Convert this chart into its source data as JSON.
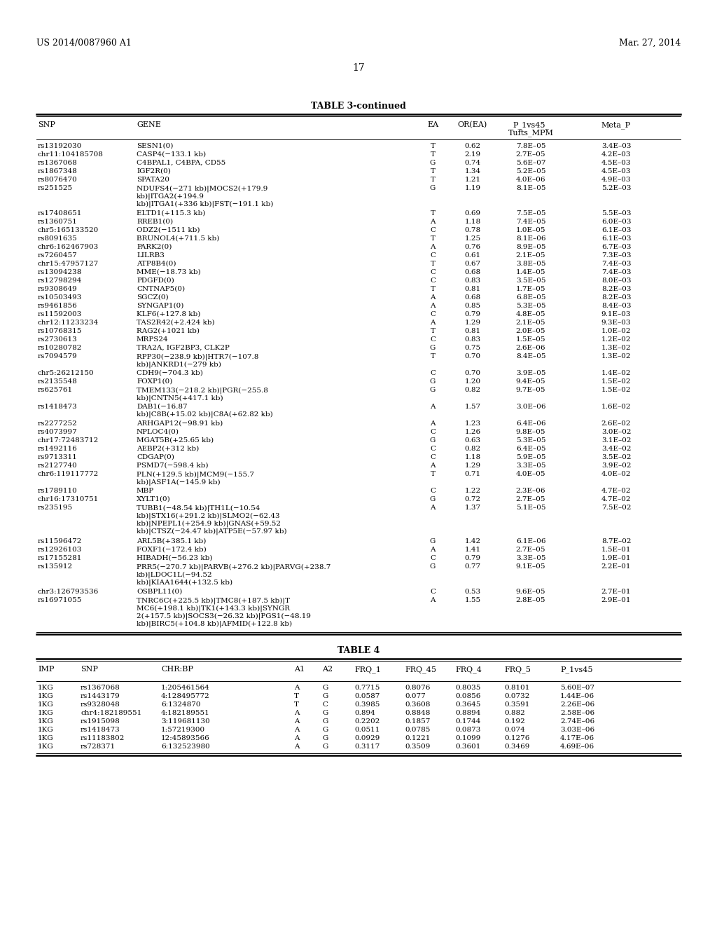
{
  "header_left": "US 2014/0087960 A1",
  "header_right": "Mar. 27, 2014",
  "page_number": "17",
  "table3_title": "TABLE 3-continued",
  "table3_rows": [
    [
      "rs13192030",
      "SESN1(0)",
      "T",
      "0.62",
      "7.8E–05",
      "3.4E–03"
    ],
    [
      "chr11:104185708",
      "CASP4(−133.1 kb)",
      "T",
      "2.19",
      "2.7E–05",
      "4.2E–03"
    ],
    [
      "rs1367068",
      "C4BPAL1, C4BPA, CD55",
      "G",
      "0.74",
      "5.6E–07",
      "4.5E–03"
    ],
    [
      "rs1867348",
      "IGF2R(0)",
      "T",
      "1.34",
      "5.2E–05",
      "4.5E–03"
    ],
    [
      "rs8076470",
      "SPATA20",
      "T",
      "1.21",
      "4.0E–06",
      "4.9E–03"
    ],
    [
      "rs251525",
      "NDUFS4(−271 kb)|MOCS2(+179.9\nkb)|ITGA2(+194.9\nkb)|ITGA1(+336 kb)|FST(−191.1 kb)",
      "G",
      "1.19",
      "8.1E–05",
      "5.2E–03"
    ],
    [
      "rs17408651",
      "ELTD1(+115.3 kb)",
      "T",
      "0.69",
      "7.5E–05",
      "5.5E–03"
    ],
    [
      "rs1360751",
      "RREB1(0)",
      "A",
      "1.18",
      "7.4E–05",
      "6.0E–03"
    ],
    [
      "chr5:165133520",
      "ODZ2(−1511 kb)",
      "C",
      "0.78",
      "1.0E–05",
      "6.1E–03"
    ],
    [
      "rs8091635",
      "BRUNOL4(+711.5 kb)",
      "T",
      "1.25",
      "8.1E–06",
      "6.1E–03"
    ],
    [
      "chr6:162467903",
      "PARK2(0)",
      "A",
      "0.76",
      "8.9E–05",
      "6.7E–03"
    ],
    [
      "rs7260457",
      "LILRB3",
      "C",
      "0.61",
      "2.1E–05",
      "7.3E–03"
    ],
    [
      "chr15:47957127",
      "ATP8B4(0)",
      "T",
      "0.67",
      "3.8E–05",
      "7.4E–03"
    ],
    [
      "rs13094238",
      "MME(−18.73 kb)",
      "C",
      "0.68",
      "1.4E–05",
      "7.4E–03"
    ],
    [
      "rs12798294",
      "PDGFD(0)",
      "C",
      "0.83",
      "3.5E–05",
      "8.0E–03"
    ],
    [
      "rs9308649",
      "CNTNAP5(0)",
      "T",
      "0.81",
      "1.7E–05",
      "8.2E–03"
    ],
    [
      "rs10503493",
      "SGCZ(0)",
      "A",
      "0.68",
      "6.8E–05",
      "8.2E–03"
    ],
    [
      "rs9461856",
      "SYNGAP1(0)",
      "A",
      "0.85",
      "5.3E–05",
      "8.4E–03"
    ],
    [
      "rs11592003",
      "KLF6(+127.8 kb)",
      "C",
      "0.79",
      "4.8E–05",
      "9.1E–03"
    ],
    [
      "chr12:11233234",
      "TAS2R42(+2.424 kb)",
      "A",
      "1.29",
      "2.1E–05",
      "9.3E–03"
    ],
    [
      "rs10768315",
      "RAG2(+1021 kb)",
      "T",
      "0.81",
      "2.0E–05",
      "1.0E–02"
    ],
    [
      "rs2730613",
      "MRPS24",
      "C",
      "0.83",
      "1.5E–05",
      "1.2E–02"
    ],
    [
      "rs10280782",
      "TRA2A, IGF2BP3, CLK2P",
      "G",
      "0.75",
      "2.6E–06",
      "1.3E–02"
    ],
    [
      "rs7094579",
      "RPP30(−238.9 kb)|HTR7(−107.8\nkb)|ANKRD1(−279 kb)",
      "T",
      "0.70",
      "8.4E–05",
      "1.3E–02"
    ],
    [
      "chr5:26212150",
      "CDH9(−704.3 kb)",
      "C",
      "0.70",
      "3.9E–05",
      "1.4E–02"
    ],
    [
      "rs2135548",
      "FOXP1(0)",
      "G",
      "1.20",
      "9.4E–05",
      "1.5E–02"
    ],
    [
      "rs625761",
      "TMEM133(−218.2 kb)|PGR(−255.8\nkb)|CNTN5(+417.1 kb)",
      "G",
      "0.82",
      "9.7E–05",
      "1.5E–02"
    ],
    [
      "rs1418473",
      "DAB1(−16.87\nkb)|C8B(+15.02 kb)|C8A(+62.82 kb)",
      "A",
      "1.57",
      "3.0E–06",
      "1.6E–02"
    ],
    [
      "rs2277252",
      "ARHGAP12(−98.91 kb)",
      "A",
      "1.23",
      "6.4E–06",
      "2.6E–02"
    ],
    [
      "rs4073997",
      "NPLOC4(0)",
      "C",
      "1.26",
      "9.8E–05",
      "3.0E–02"
    ],
    [
      "chr17:72483712",
      "MGAT5B(+25.65 kb)",
      "G",
      "0.63",
      "5.3E–05",
      "3.1E–02"
    ],
    [
      "rs1492116",
      "AEBP2(+312 kb)",
      "C",
      "0.82",
      "6.4E–05",
      "3.4E–02"
    ],
    [
      "rs9713311",
      "CDGAP(0)",
      "C",
      "1.18",
      "5.9E–05",
      "3.5E–02"
    ],
    [
      "rs2127740",
      "PSMD7(−598.4 kb)",
      "A",
      "1.29",
      "3.3E–05",
      "3.9E–02"
    ],
    [
      "chr6:119117772",
      "PLN(+129.5 kb)|MCM9(−155.7\nkb)|ASF1A(−145.9 kb)",
      "T",
      "0.71",
      "4.0E–05",
      "4.0E–02"
    ],
    [
      "rs1789110",
      "MBP",
      "C",
      "1.22",
      "2.3E–06",
      "4.7E–02"
    ],
    [
      "chr16:17310751",
      "XYLT1(0)",
      "G",
      "0.72",
      "2.7E–05",
      "4.7E–02"
    ],
    [
      "rs235195",
      "TUBB1(−48.54 kb)|TH1L(−10.54\nkb)|STX16(+291.2 kb)|SLMO2(−62.43\nkb)|NPEPL1(+254.9 kb)|GNAS(+59.52\nkb)|CTSZ(−24.47 kb)|ATP5E(−57.97 kb)",
      "A",
      "1.37",
      "5.1E–05",
      "7.5E–02"
    ],
    [
      "rs11596472",
      "ARL5B(+385.1 kb)",
      "G",
      "1.42",
      "6.1E–06",
      "8.7E–02"
    ],
    [
      "rs12926103",
      "FOXF1(−172.4 kb)",
      "A",
      "1.41",
      "2.7E–05",
      "1.5E–01"
    ],
    [
      "rs17155281",
      "HIBADH(−56.23 kb)",
      "C",
      "0.79",
      "3.3E–05",
      "1.9E–01"
    ],
    [
      "rs135912",
      "PRR5(−270.7 kb)|PARVB(+276.2 kb)|PARVG(+238.7\nkb)|LDOC1L(−94.52\nkb)|KIAA1644(+132.5 kb)",
      "G",
      "0.77",
      "9.1E–05",
      "2.2E–01"
    ],
    [
      "chr3:126793536",
      "OSBPL11(0)",
      "C",
      "0.53",
      "9.6E–05",
      "2.7E–01"
    ],
    [
      "rs16971055",
      "TNRC6C(+225.5 kb)|TMC8(+187.5 kb)|T\nMC6(+198.1 kb)|TK1(+143.3 kb)|SYNGR\n2(+157.5 kb)|SOCS3(−26.32 kb)|PGS1(−48.19\nkb)|BIRC5(+104.8 kb)|AFMID(+122.8 kb)",
      "A",
      "1.55",
      "2.8E–05",
      "2.9E–01"
    ]
  ],
  "table4_title": "TABLE 4",
  "table4_headers": [
    "IMP",
    "SNP",
    "CHR:BP",
    "A1",
    "A2",
    "FRQ_1",
    "FRQ_45",
    "FRQ_4",
    "FRQ_5",
    "P_1vs45"
  ],
  "table4_rows": [
    [
      "1KG",
      "rs1367068",
      "1:205461564",
      "A",
      "G",
      "0.7715",
      "0.8076",
      "0.8035",
      "0.8101",
      "5.60E–07"
    ],
    [
      "1KG",
      "rs1443179",
      "4:128495772",
      "T",
      "G",
      "0.0587",
      "0.077",
      "0.0856",
      "0.0732",
      "1.44E–06"
    ],
    [
      "1KG",
      "rs9328048",
      "6:1324870",
      "T",
      "C",
      "0.3985",
      "0.3608",
      "0.3645",
      "0.3591",
      "2.26E–06"
    ],
    [
      "1KG",
      "chr4:182189551",
      "4:182189551",
      "A",
      "G",
      "0.894",
      "0.8848",
      "0.8894",
      "0.882",
      "2.58E–06"
    ],
    [
      "1KG",
      "rs1915098",
      "3:119681130",
      "A",
      "G",
      "0.2202",
      "0.1857",
      "0.1744",
      "0.192",
      "2.74E–06"
    ],
    [
      "1KG",
      "rs1418473",
      "1:57219300",
      "A",
      "G",
      "0.0511",
      "0.0785",
      "0.0873",
      "0.074",
      "3.03E–06"
    ],
    [
      "1KG",
      "rs11183802",
      "12:45893566",
      "A",
      "G",
      "0.0929",
      "0.1221",
      "0.1099",
      "0.1276",
      "4.17E–06"
    ],
    [
      "1KG",
      "rs728371",
      "6:132523980",
      "A",
      "G",
      "0.3117",
      "0.3509",
      "0.3601",
      "0.3469",
      "4.69E–06"
    ]
  ]
}
